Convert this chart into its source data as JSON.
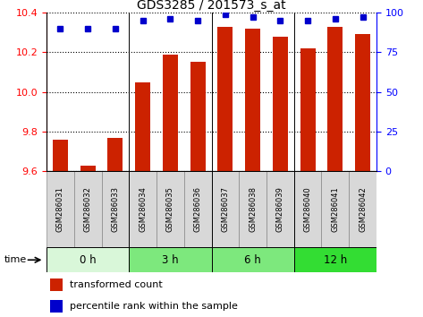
{
  "title": "GDS3285 / 201573_s_at",
  "samples": [
    "GSM286031",
    "GSM286032",
    "GSM286033",
    "GSM286034",
    "GSM286035",
    "GSM286036",
    "GSM286037",
    "GSM286038",
    "GSM286039",
    "GSM286040",
    "GSM286041",
    "GSM286042"
  ],
  "bar_values": [
    9.76,
    9.63,
    9.77,
    10.05,
    10.19,
    10.15,
    10.33,
    10.32,
    10.28,
    10.22,
    10.33,
    10.29
  ],
  "percentile_values": [
    90,
    90,
    90,
    95,
    96,
    95,
    99,
    97,
    95,
    95,
    96,
    97
  ],
  "bar_color": "#cc2200",
  "percentile_color": "#0000cc",
  "ylim_left": [
    9.6,
    10.4
  ],
  "ylim_right": [
    0,
    100
  ],
  "yticks_left": [
    9.6,
    9.8,
    10.0,
    10.2,
    10.4
  ],
  "yticks_right": [
    0,
    25,
    50,
    75,
    100
  ],
  "groups": [
    {
      "label": "0 h",
      "start": 0,
      "end": 3,
      "color": "#d9f7d9"
    },
    {
      "label": "3 h",
      "start": 3,
      "end": 6,
      "color": "#7de87d"
    },
    {
      "label": "6 h",
      "start": 6,
      "end": 9,
      "color": "#7de87d"
    },
    {
      "label": "12 h",
      "start": 9,
      "end": 12,
      "color": "#33dd33"
    }
  ],
  "time_label": "time",
  "legend_bar_label": "transformed count",
  "legend_pct_label": "percentile rank within the sample",
  "bar_bottom": 9.6,
  "bar_width": 0.55,
  "group_boundaries": [
    3,
    6,
    9
  ],
  "sample_bg_color": "#d8d8d8",
  "sample_border_color": "#888888"
}
